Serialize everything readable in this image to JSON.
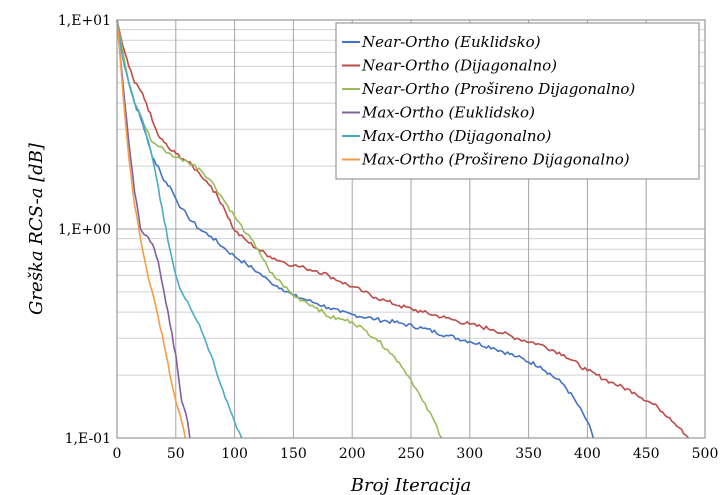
{
  "chart_data": {
    "type": "line",
    "title": "",
    "xlabel": "Broj Iteracija",
    "ylabel": "Greška RCS-a [dB]",
    "xlim": [
      0,
      500
    ],
    "ylim": [
      0.1,
      10
    ],
    "yscale": "log",
    "grid": true,
    "legend_position": "top-right",
    "x_ticks": [
      "0",
      "50",
      "100",
      "150",
      "200",
      "250",
      "300",
      "350",
      "400",
      "450",
      "500"
    ],
    "y_ticks": [
      "1,E-01",
      "1,E+00",
      "1,E+01"
    ],
    "series": [
      {
        "name": "Near-Ortho (Euklidsko)",
        "color": "#4472c4",
        "points": [
          [
            0,
            10
          ],
          [
            5,
            7
          ],
          [
            10,
            5
          ],
          [
            15,
            4
          ],
          [
            20,
            3.4
          ],
          [
            25,
            2.8
          ],
          [
            30,
            2.2
          ],
          [
            35,
            2
          ],
          [
            40,
            1.7
          ],
          [
            45,
            1.6
          ],
          [
            50,
            1.4
          ],
          [
            55,
            1.25
          ],
          [
            60,
            1.15
          ],
          [
            70,
            1
          ],
          [
            80,
            0.92
          ],
          [
            90,
            0.82
          ],
          [
            100,
            0.74
          ],
          [
            110,
            0.68
          ],
          [
            120,
            0.62
          ],
          [
            130,
            0.56
          ],
          [
            140,
            0.52
          ],
          [
            150,
            0.48
          ],
          [
            160,
            0.46
          ],
          [
            170,
            0.44
          ],
          [
            180,
            0.42
          ],
          [
            190,
            0.4
          ],
          [
            200,
            0.39
          ],
          [
            220,
            0.37
          ],
          [
            240,
            0.355
          ],
          [
            260,
            0.335
          ],
          [
            280,
            0.31
          ],
          [
            300,
            0.29
          ],
          [
            320,
            0.27
          ],
          [
            340,
            0.245
          ],
          [
            360,
            0.22
          ],
          [
            380,
            0.18
          ],
          [
            390,
            0.15
          ],
          [
            400,
            0.12
          ],
          [
            405,
            0.1
          ]
        ]
      },
      {
        "name": "Near-Ortho (Dijagonalno)",
        "color": "#be4b48",
        "points": [
          [
            0,
            10
          ],
          [
            5,
            7.5
          ],
          [
            10,
            6
          ],
          [
            15,
            5
          ],
          [
            20,
            4.6
          ],
          [
            25,
            4
          ],
          [
            30,
            3.3
          ],
          [
            35,
            2.8
          ],
          [
            40,
            2.6
          ],
          [
            45,
            2.4
          ],
          [
            50,
            2.3
          ],
          [
            60,
            2.1
          ],
          [
            70,
            1.85
          ],
          [
            80,
            1.6
          ],
          [
            90,
            1.3
          ],
          [
            100,
            0.98
          ],
          [
            110,
            0.88
          ],
          [
            120,
            0.8
          ],
          [
            130,
            0.74
          ],
          [
            140,
            0.7
          ],
          [
            150,
            0.67
          ],
          [
            160,
            0.65
          ],
          [
            170,
            0.63
          ],
          [
            180,
            0.6
          ],
          [
            190,
            0.56
          ],
          [
            200,
            0.53
          ],
          [
            210,
            0.5
          ],
          [
            220,
            0.47
          ],
          [
            230,
            0.45
          ],
          [
            240,
            0.43
          ],
          [
            260,
            0.4
          ],
          [
            280,
            0.375
          ],
          [
            300,
            0.35
          ],
          [
            320,
            0.33
          ],
          [
            340,
            0.3
          ],
          [
            360,
            0.28
          ],
          [
            380,
            0.25
          ],
          [
            400,
            0.21
          ],
          [
            420,
            0.185
          ],
          [
            440,
            0.165
          ],
          [
            460,
            0.14
          ],
          [
            470,
            0.125
          ],
          [
            480,
            0.11
          ],
          [
            486,
            0.1
          ]
        ]
      },
      {
        "name": "Near-Ortho (Prošireno Dijagonalno)",
        "color": "#9bbb59",
        "points": [
          [
            0,
            10
          ],
          [
            5,
            7
          ],
          [
            10,
            5
          ],
          [
            15,
            4
          ],
          [
            20,
            3.5
          ],
          [
            25,
            3
          ],
          [
            30,
            2.6
          ],
          [
            40,
            2.4
          ],
          [
            50,
            2.2
          ],
          [
            60,
            2.1
          ],
          [
            70,
            1.95
          ],
          [
            80,
            1.7
          ],
          [
            90,
            1.4
          ],
          [
            100,
            1.15
          ],
          [
            110,
            0.95
          ],
          [
            120,
            0.8
          ],
          [
            130,
            0.62
          ],
          [
            140,
            0.55
          ],
          [
            150,
            0.48
          ],
          [
            160,
            0.45
          ],
          [
            170,
            0.42
          ],
          [
            180,
            0.38
          ],
          [
            190,
            0.37
          ],
          [
            200,
            0.36
          ],
          [
            210,
            0.33
          ],
          [
            220,
            0.3
          ],
          [
            230,
            0.265
          ],
          [
            240,
            0.23
          ],
          [
            250,
            0.19
          ],
          [
            260,
            0.15
          ],
          [
            270,
            0.12
          ],
          [
            276,
            0.1
          ]
        ]
      },
      {
        "name": "Max-Ortho (Euklidsko)",
        "color": "#7f609f",
        "points": [
          [
            0,
            10
          ],
          [
            5,
            5
          ],
          [
            10,
            2.6
          ],
          [
            15,
            1.5
          ],
          [
            20,
            1
          ],
          [
            25,
            0.93
          ],
          [
            30,
            0.85
          ],
          [
            35,
            0.7
          ],
          [
            40,
            0.5
          ],
          [
            45,
            0.35
          ],
          [
            50,
            0.25
          ],
          [
            55,
            0.15
          ],
          [
            60,
            0.12
          ],
          [
            62,
            0.1
          ]
        ]
      },
      {
        "name": "Max-Ortho (Dijagonalno)",
        "color": "#4bacc6",
        "points": [
          [
            0,
            10
          ],
          [
            5,
            6.5
          ],
          [
            10,
            5
          ],
          [
            15,
            4
          ],
          [
            20,
            3.5
          ],
          [
            25,
            2.8
          ],
          [
            30,
            2.2
          ],
          [
            35,
            1.6
          ],
          [
            40,
            1.1
          ],
          [
            45,
            0.8
          ],
          [
            50,
            0.6
          ],
          [
            55,
            0.5
          ],
          [
            60,
            0.45
          ],
          [
            70,
            0.35
          ],
          [
            80,
            0.25
          ],
          [
            90,
            0.17
          ],
          [
            100,
            0.12
          ],
          [
            106,
            0.1
          ]
        ]
      },
      {
        "name": "Max-Ortho (Prošireno Dijagonalno)",
        "color": "#f59d46",
        "points": [
          [
            0,
            10
          ],
          [
            5,
            4.5
          ],
          [
            10,
            2.2
          ],
          [
            15,
            1.3
          ],
          [
            20,
            0.9
          ],
          [
            25,
            0.65
          ],
          [
            30,
            0.5
          ],
          [
            35,
            0.38
          ],
          [
            40,
            0.28
          ],
          [
            45,
            0.2
          ],
          [
            50,
            0.15
          ],
          [
            55,
            0.12
          ],
          [
            58,
            0.1
          ]
        ]
      }
    ]
  }
}
